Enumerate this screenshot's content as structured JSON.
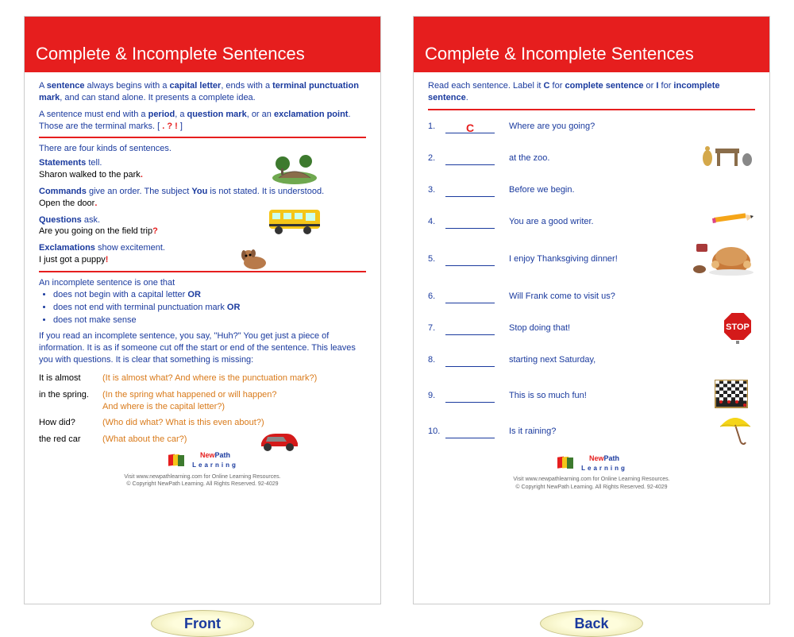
{
  "colors": {
    "header_bg": "#e61e1e",
    "header_text": "#ffffff",
    "primary_blue": "#1a3a9e",
    "accent_orange": "#d97a1a",
    "accent_red": "#e61e1e",
    "black": "#000000",
    "label_bg": "#fefddc",
    "label_border": "#c9c48a"
  },
  "header_title": "Complete & Incomplete Sentences",
  "front": {
    "intro": {
      "p1_pre": "A ",
      "p1_b1": "sentence",
      "p1_mid1": " always begins with a ",
      "p1_b2": "capital letter",
      "p1_mid2": ", ends with a ",
      "p1_b3": "terminal punctuation mark",
      "p1_end": ", and can stand alone.  It presents a complete idea.",
      "p2_pre": "A sentence must end with a ",
      "p2_b1": "period",
      "p2_mid1": ", a ",
      "p2_b2": "question mark",
      "p2_mid2": ", or an ",
      "p2_b3": "exclamation point",
      "p2_end": ".  Those are the terminal marks.  [ ",
      "marks": ". ? !",
      "p2_close": " ]"
    },
    "kinds_intro": "There are four kinds of sentences.",
    "statements_label": "Statements",
    "statements_tell": " tell.",
    "statements_ex": "Sharon walked to the park",
    "commands_label": "Commands",
    "commands_text": " give an order.  The subject ",
    "commands_you": "You",
    "commands_text2": " is not stated.   It is understood.",
    "commands_ex": "Open the door",
    "questions_label": "Questions",
    "questions_text": " ask.",
    "questions_ex": "Are you going on the field trip",
    "exclamations_label": "Exclamations",
    "exclamations_text": " show excitement.",
    "exclamations_ex": "I just got a puppy",
    "incomplete_intro": "An incomplete sentence is one that",
    "bullet1": "does not begin with a capital letter   ",
    "bullet1_or": "OR",
    "bullet2": "does not end with terminal punctuation mark   ",
    "bullet2_or": "OR",
    "bullet3": "does not make sense",
    "incomplete_p": "If you read an incomplete sentence, you say, \"Huh?\"  You get just a piece of information.  It is as if someone cut off the start or end of the sentence.  This leaves you with questions.  It is clear that something is missing:",
    "ex1_left": "It is almost",
    "ex1_right": "(It is almost what?  And where is the punctuation mark?)",
    "ex2_left": "in the spring.",
    "ex2_right": "(In the spring what happened or will happen?\n  And where is the capital letter?)",
    "ex3_left": "How did?",
    "ex3_right": "(Who did what?  What is this even about?)",
    "ex4_left": "the red car",
    "ex4_right": "(What about the car?)",
    "label": "Front"
  },
  "back": {
    "instr_pre": "Read each sentence.  Label it ",
    "instr_c": "C",
    "instr_mid1": " for ",
    "instr_complete": "complete sentence",
    "instr_or": " or ",
    "instr_i": "I",
    "instr_mid2": " for ",
    "instr_incomplete": "incomplete sentence",
    "instr_end": ".",
    "questions": [
      {
        "num": "1.",
        "answer": "C",
        "text": "Where are you going?"
      },
      {
        "num": "2.",
        "answer": "",
        "text": "at the zoo."
      },
      {
        "num": "3.",
        "answer": "",
        "text": "Before we begin."
      },
      {
        "num": "4.",
        "answer": "",
        "text": "You are a good writer."
      },
      {
        "num": "5.",
        "answer": "",
        "text": "I enjoy Thanksgiving dinner!"
      },
      {
        "num": "6.",
        "answer": "",
        "text": "Will Frank come to visit us?"
      },
      {
        "num": "7.",
        "answer": "",
        "text": "Stop doing that!"
      },
      {
        "num": "8.",
        "answer": "",
        "text": "starting next Saturday,"
      },
      {
        "num": "9.",
        "answer": "",
        "text": "This is so much fun!"
      },
      {
        "num": "10.",
        "answer": "",
        "text": "Is it raining?"
      }
    ],
    "label": "Back"
  },
  "footer": {
    "brand_new": "New",
    "brand_path": "Path",
    "brand_learning": " Learning",
    "sub": "Visit www.newpathlearning.com for Online Learning Resources.\n© Copyright NewPath Learning. All Rights Reserved. 92-4029"
  }
}
